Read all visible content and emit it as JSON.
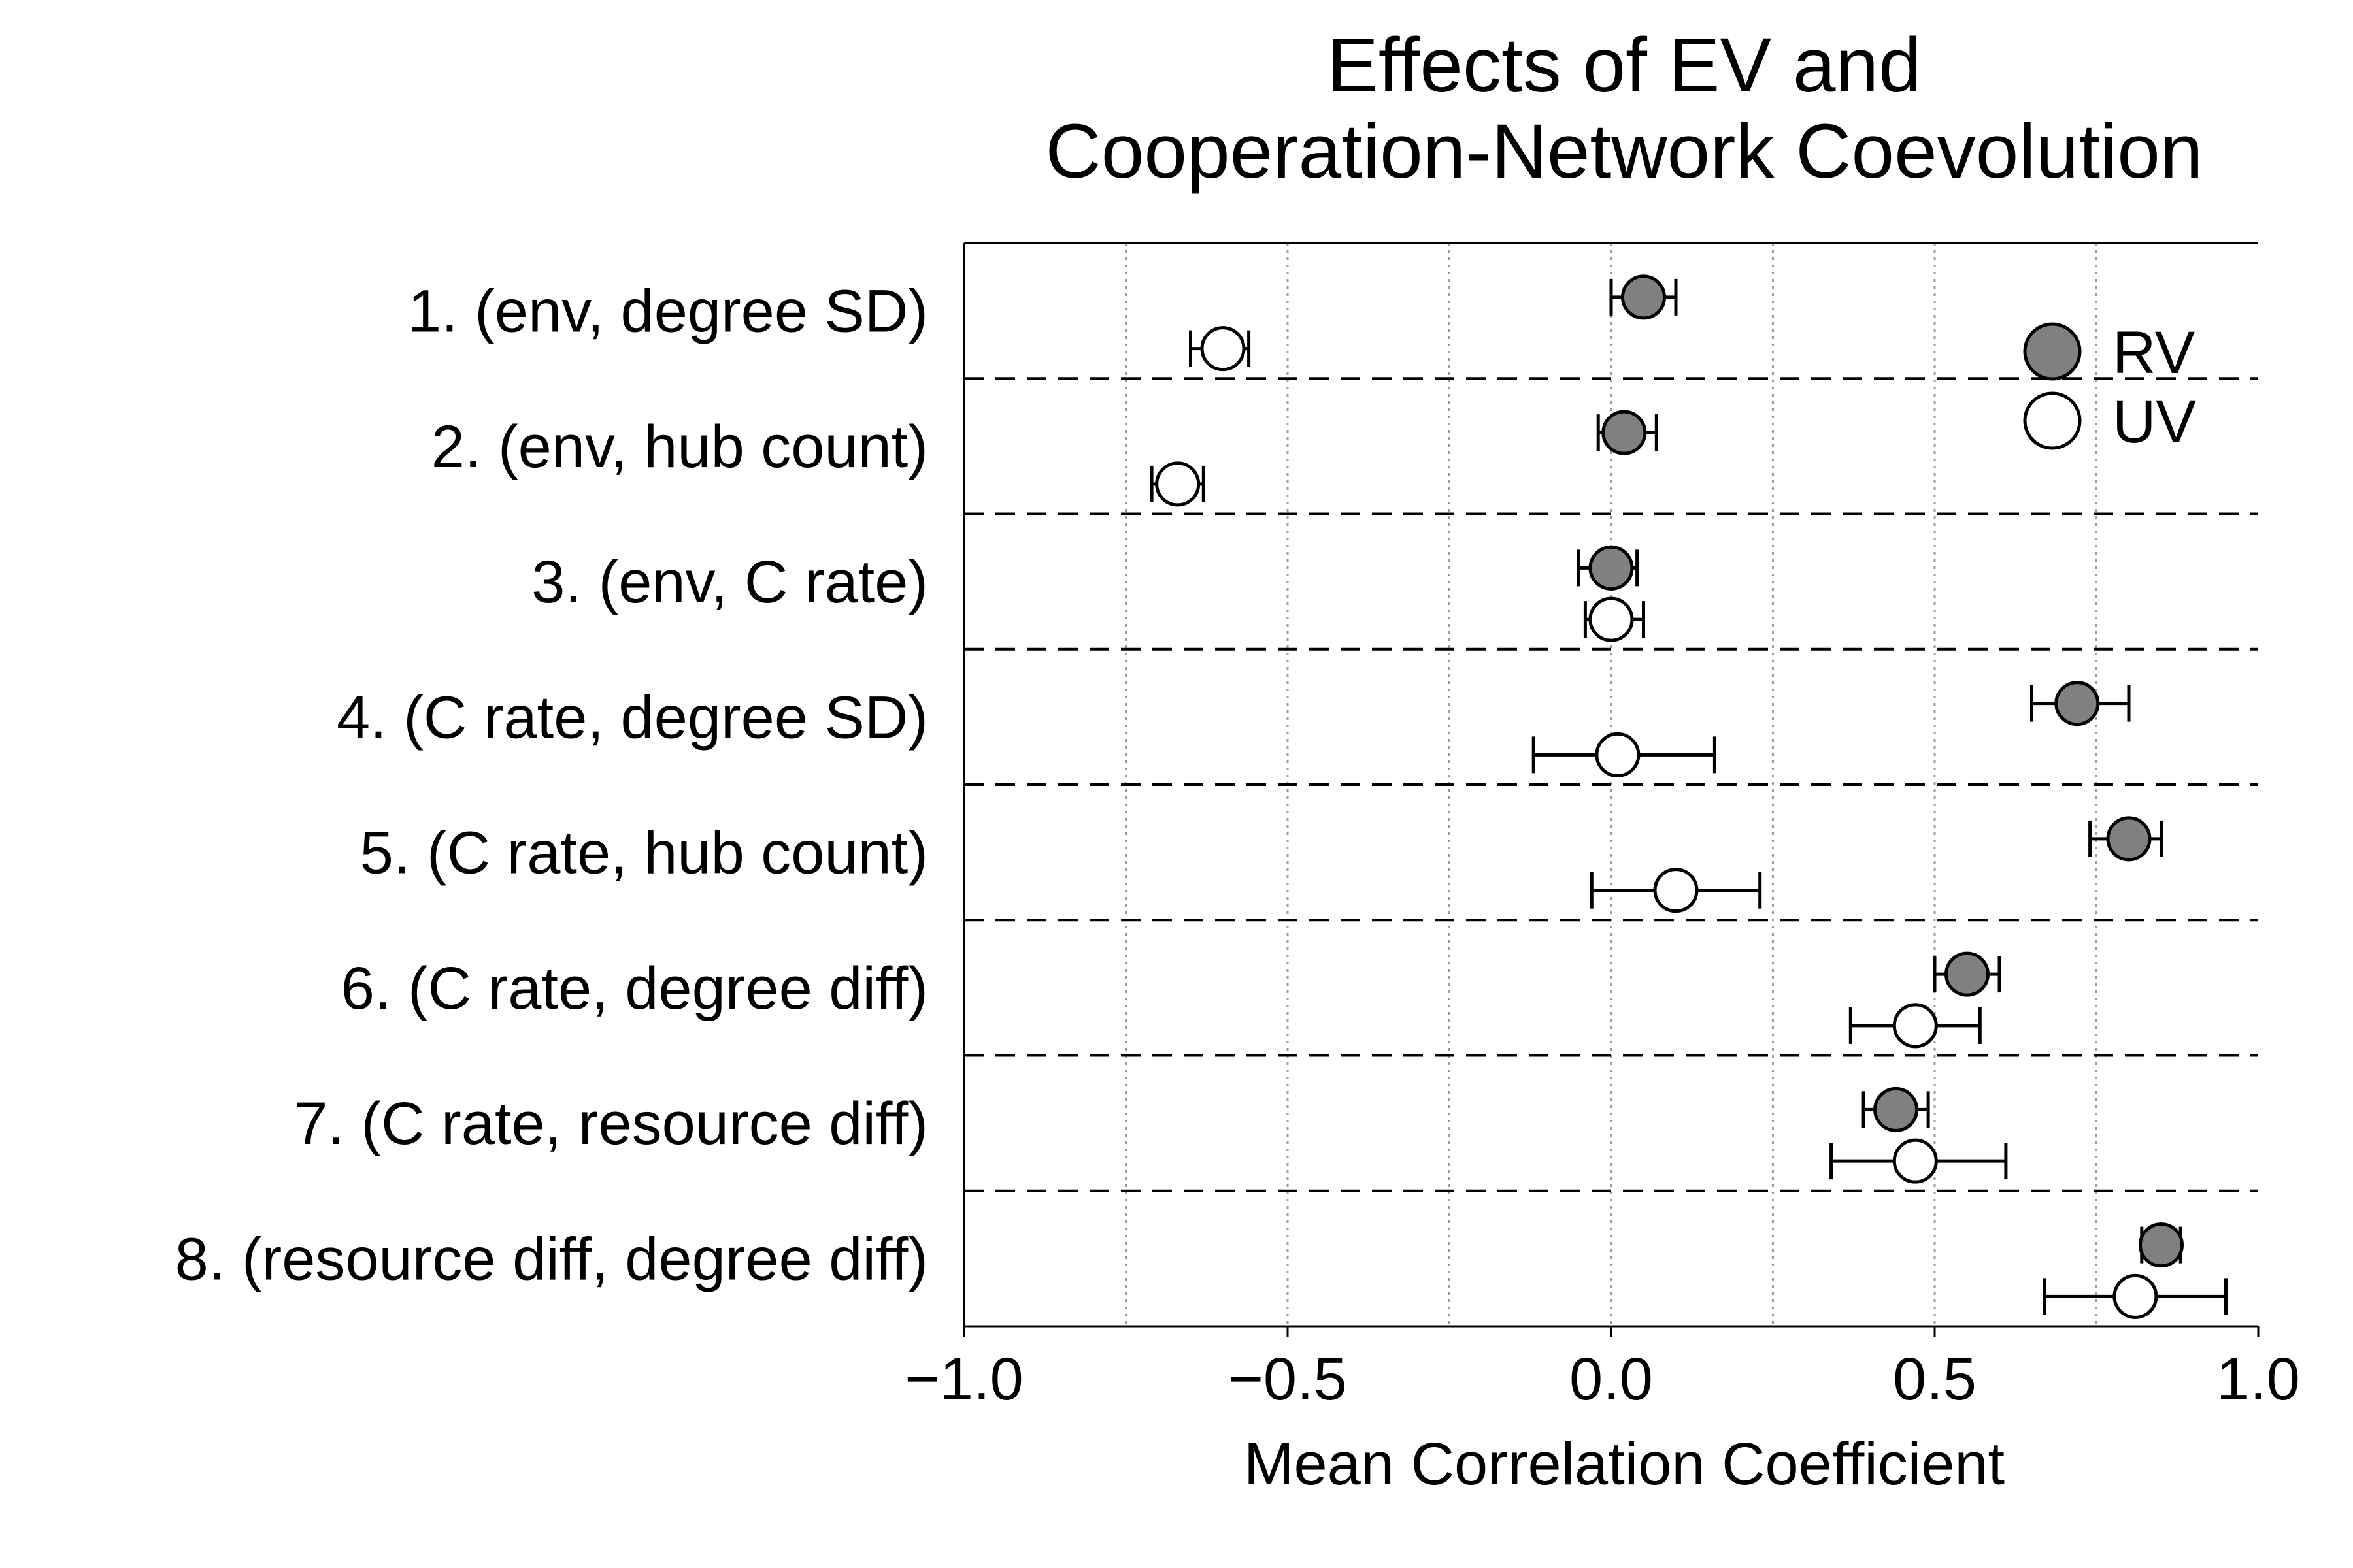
{
  "chart_data": {
    "type": "scatter",
    "title_lines": [
      "Effects of EV and",
      "Cooperation-Network Coevolution"
    ],
    "xlabel": "Mean Correlation Coefficient",
    "xlim": [
      -1.0,
      1.0
    ],
    "xticks": [
      -1.0,
      -0.5,
      0.0,
      0.5,
      1.0
    ],
    "xtick_labels": [
      "−1.0",
      "−0.5",
      "0.0",
      "0.5",
      "1.0"
    ],
    "minor_gridlines": [
      -0.75,
      -0.25,
      0.25,
      0.75
    ],
    "grid": "vertical dotted",
    "legend_position": "top-right",
    "categories": [
      "1. (env, degree SD)",
      "2. (env, hub count)",
      "3. (env, C rate)",
      "4. (C rate, degree SD)",
      "5. (C rate, hub count)",
      "6. (C rate, degree diff)",
      "7. (C rate, resource diff)",
      "8. (resource diff, degree diff)"
    ],
    "series": [
      {
        "name": "RV",
        "color": "#808080",
        "means": [
          0.05,
          0.02,
          0.0,
          0.72,
          0.8,
          0.55,
          0.44,
          0.85
        ],
        "ci_low": [
          0.0,
          -0.02,
          -0.05,
          0.65,
          0.74,
          0.5,
          0.39,
          0.82
        ],
        "ci_high": [
          0.1,
          0.07,
          0.04,
          0.8,
          0.85,
          0.6,
          0.49,
          0.88
        ]
      },
      {
        "name": "UV",
        "color": "#ffffff",
        "means": [
          -0.6,
          -0.67,
          0.0,
          0.01,
          0.1,
          0.47,
          0.47,
          0.81
        ],
        "ci_low": [
          -0.65,
          -0.71,
          -0.04,
          -0.12,
          -0.03,
          0.37,
          0.34,
          0.67
        ],
        "ci_high": [
          -0.56,
          -0.63,
          0.05,
          0.16,
          0.23,
          0.57,
          0.61,
          0.95
        ]
      }
    ]
  }
}
